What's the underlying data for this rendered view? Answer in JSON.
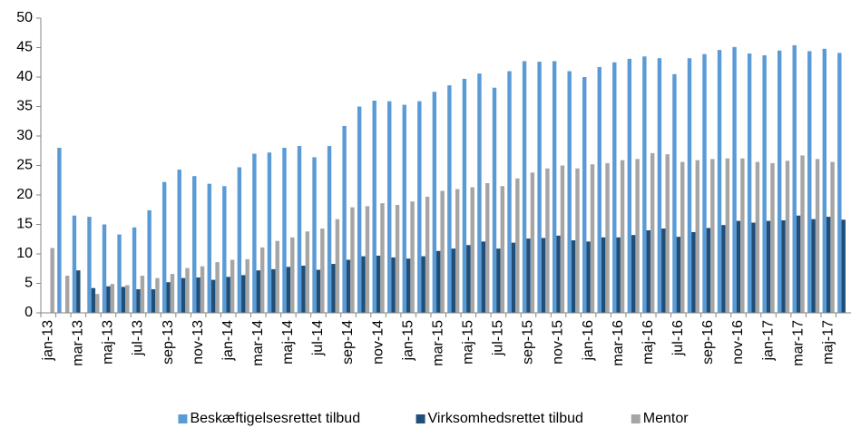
{
  "chart_data": {
    "type": "bar",
    "categories": [
      "jan-13",
      null,
      "mar-13",
      null,
      "maj-13",
      null,
      "jul-13",
      null,
      "sep-13",
      null,
      "nov-13",
      null,
      "jan-14",
      null,
      "mar-14",
      null,
      "maj-14",
      null,
      "jul-14",
      null,
      "sep-14",
      null,
      "nov-14",
      null,
      "jan-15",
      null,
      "mar-15",
      null,
      "maj-15",
      null,
      "jul-15",
      null,
      "sep-15",
      null,
      "nov-15",
      null,
      "jan-16",
      null,
      "mar-16",
      null,
      "maj-16",
      null,
      "jul-16",
      null,
      "sep-16",
      null,
      "nov-16",
      null,
      "jan-17",
      null,
      "mar-17",
      null,
      "maj-17",
      null
    ],
    "series": [
      {
        "name": "Beskæftigelsesrettet tilbud",
        "color": "#5b9bd5",
        "values": [
          null,
          28,
          16.5,
          16.3,
          15,
          13.3,
          14.5,
          17.4,
          22.2,
          24.3,
          23.2,
          21.9,
          21.5,
          24.7,
          27,
          27.2,
          28,
          28.3,
          26.4,
          28.3,
          31.7,
          35,
          36,
          35.9,
          35.3,
          35.9,
          37.5,
          38.6,
          39.7,
          40.6,
          38.2,
          41,
          42.7,
          42.6,
          42.7,
          41,
          40,
          41.7,
          42.5,
          43.1,
          43.5,
          43.2,
          40.5,
          43.2,
          43.9,
          44.6,
          45.1,
          44,
          43.7,
          44.5,
          45.4,
          44.4,
          44.8,
          44.1
        ]
      },
      {
        "name": "Virksomhedsrettet tilbud",
        "color": "#1f4e79",
        "values": [
          null,
          null,
          7.2,
          4.2,
          4.5,
          4.4,
          4.0,
          4.0,
          5.2,
          5.9,
          6.0,
          5.6,
          6.1,
          6.4,
          7.2,
          7.4,
          7.8,
          8.0,
          7.3,
          8.3,
          9.0,
          9.6,
          9.7,
          9.4,
          9.2,
          9.6,
          10.5,
          10.9,
          11.5,
          12.1,
          10.9,
          11.9,
          12.6,
          12.7,
          13.1,
          12.3,
          12.1,
          12.8,
          12.8,
          13.2,
          14.0,
          14.3,
          12.9,
          13.7,
          14.4,
          14.9,
          15.6,
          15.3,
          15.6,
          15.7,
          16.5,
          15.9,
          16.3,
          15.8
        ]
      },
      {
        "name": "Mentor",
        "color": "#a5a5a5",
        "values": [
          11,
          6.3,
          null,
          3.2,
          4.9,
          4.7,
          6.3,
          5.9,
          6.6,
          7.6,
          7.9,
          8.6,
          9.0,
          9.1,
          11.1,
          12.2,
          12.8,
          13.8,
          14.3,
          15.9,
          17.9,
          18.1,
          18.6,
          18.3,
          18.9,
          19.7,
          20.7,
          21.0,
          21.3,
          22.0,
          21.5,
          22.8,
          23.8,
          24.5,
          25.0,
          24.5,
          25.2,
          25.4,
          25.9,
          26.1,
          27.1,
          26.9,
          25.6,
          25.9,
          26.1,
          26.2,
          26.2,
          25.6,
          25.4,
          25.8,
          26.7,
          26.1,
          25.6,
          null
        ]
      }
    ],
    "ylim": [
      0,
      50
    ],
    "yticks": [
      0,
      5,
      10,
      15,
      20,
      25,
      30,
      35,
      40,
      45,
      50
    ],
    "grid": false,
    "legend": "bottom"
  }
}
